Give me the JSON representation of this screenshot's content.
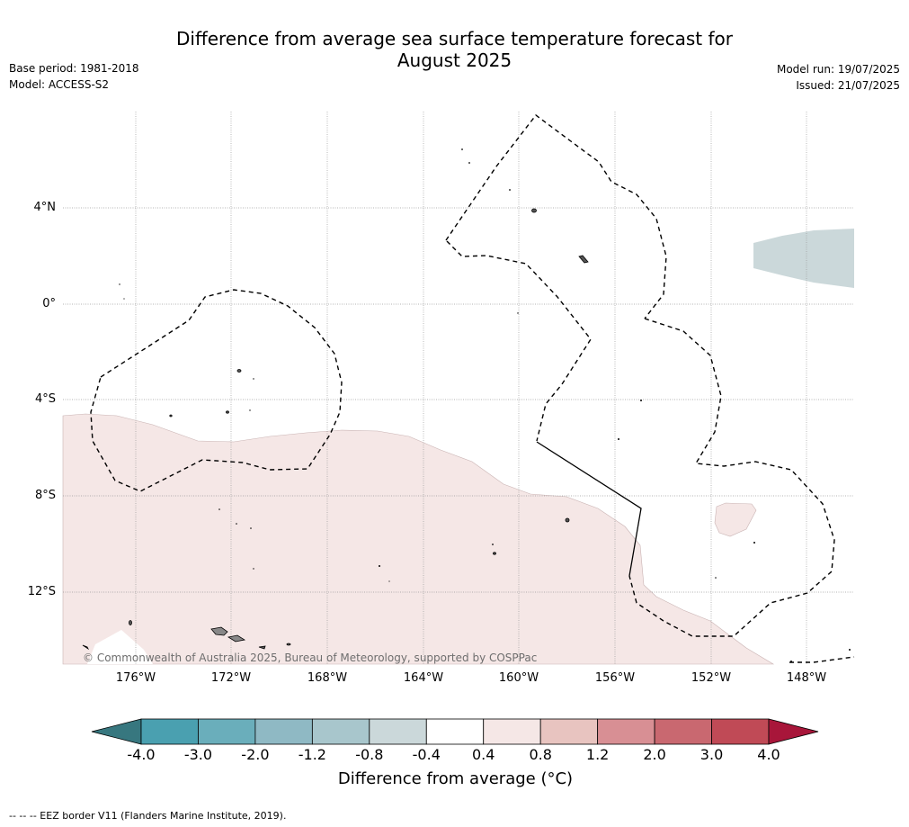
{
  "title": [
    "Difference from average sea surface temperature forecast for",
    "August 2025"
  ],
  "meta_left": [
    "Base period: 1981-2018",
    "Model: ACCESS-S2"
  ],
  "meta_right": [
    "Model run: 19/07/2025",
    "Issued: 21/07/2025"
  ],
  "lat_labels": [
    "4°N",
    "0°",
    "4°S",
    "8°S",
    "12°S"
  ],
  "lon_labels": [
    "176°W",
    "172°W",
    "168°W",
    "164°W",
    "160°W",
    "156°W",
    "152°W",
    "148°W"
  ],
  "copyright": "© Commonwealth of Australia 2025, Bureau of Meteorology, supported by COSPPac",
  "colorbar": {
    "ticks": [
      "-4.0",
      "-3.0",
      "-2.0",
      "-1.2",
      "-0.8",
      "-0.4",
      "0.4",
      "0.8",
      "1.2",
      "2.0",
      "3.0",
      "4.0"
    ],
    "colors": [
      "#37777f",
      "#4aa0b0",
      "#6aaebb",
      "#8fb9c4",
      "#a8c6cc",
      "#cbd8da",
      "#ffffff",
      "#f5e7e6",
      "#e8c4c0",
      "#d88f94",
      "#c96870",
      "#c04a56",
      "#a8163a"
    ],
    "title": "Difference from average (°C)"
  },
  "map_colors": {
    "light_warm": "#f5e7e6",
    "light_cool": "#cbd8da",
    "land": "#888888"
  },
  "footnote": "--  --  -- EEZ border V11 (Flanders Marine Institute, 2019)."
}
